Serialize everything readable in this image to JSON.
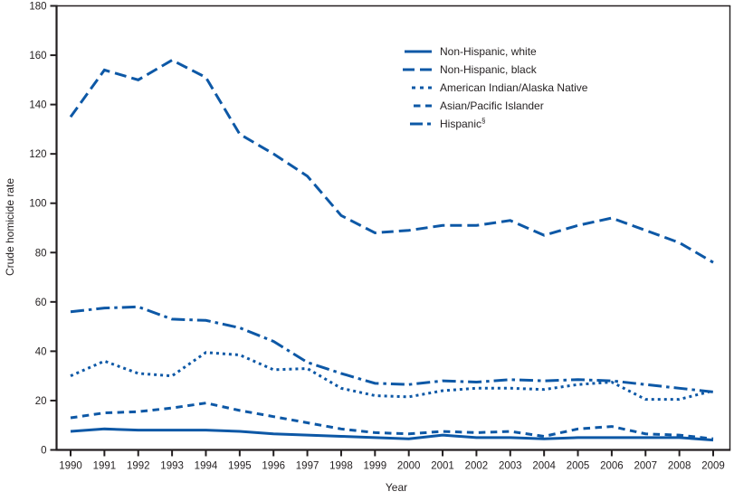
{
  "figure": {
    "background": "#ffffff"
  },
  "colors": {
    "series_line": "#0d58a6",
    "axis": "#231f20",
    "text": "#231f20"
  },
  "chart_data": {
    "type": "line",
    "title": "",
    "xlabel": "Year",
    "ylabel": "Crude homicide rate",
    "x": [
      1990,
      1991,
      1992,
      1993,
      1994,
      1995,
      1996,
      1997,
      1998,
      1999,
      2000,
      2001,
      2002,
      2003,
      2004,
      2005,
      2006,
      2007,
      2008,
      2009
    ],
    "ylim": [
      0,
      180
    ],
    "ytick_interval": 20,
    "ytick_labels": [
      "0",
      "20",
      "40",
      "60",
      "80",
      "100",
      "120",
      "140",
      "160",
      "180"
    ],
    "grid": false,
    "legend_position": "inside-top-center",
    "series": [
      {
        "name": "Non-Hispanic, white",
        "line_style": "solid",
        "values": [
          7.5,
          8.5,
          8,
          8,
          8,
          7.5,
          6.5,
          6,
          5.5,
          5,
          4.5,
          6,
          5,
          5,
          4.5,
          5,
          5,
          5,
          5,
          4
        ]
      },
      {
        "name": "Non-Hispanic, black",
        "line_style": "long-dash",
        "values": [
          135,
          154,
          150,
          158,
          151,
          128,
          120,
          111,
          95,
          88,
          89,
          91,
          91,
          93,
          87,
          91,
          94,
          89,
          84,
          76
        ]
      },
      {
        "name": "American Indian/Alaska Native",
        "line_style": "dotted",
        "values": [
          30,
          36,
          31,
          30,
          39.5,
          38.5,
          32.5,
          33,
          25,
          22,
          21.5,
          24,
          25,
          25,
          24.5,
          26.5,
          27.5,
          20.5,
          20.5,
          24
        ]
      },
      {
        "name": "Asian/Pacific Islander",
        "line_style": "dash",
        "values": [
          13,
          15,
          15.5,
          17,
          19,
          16,
          13.5,
          11,
          8.5,
          7,
          6.5,
          7.5,
          7,
          7.5,
          5.5,
          8.5,
          9.5,
          6.5,
          6,
          4.5
        ]
      },
      {
        "name": "Hispanic",
        "superscript": "§",
        "line_style": "dash-dot",
        "values": [
          56,
          57.5,
          58,
          53,
          52.5,
          49.5,
          44,
          35.5,
          31,
          27,
          26.5,
          28,
          27.5,
          28.5,
          28,
          28.5,
          28,
          26.5,
          25,
          23.5
        ]
      }
    ]
  }
}
